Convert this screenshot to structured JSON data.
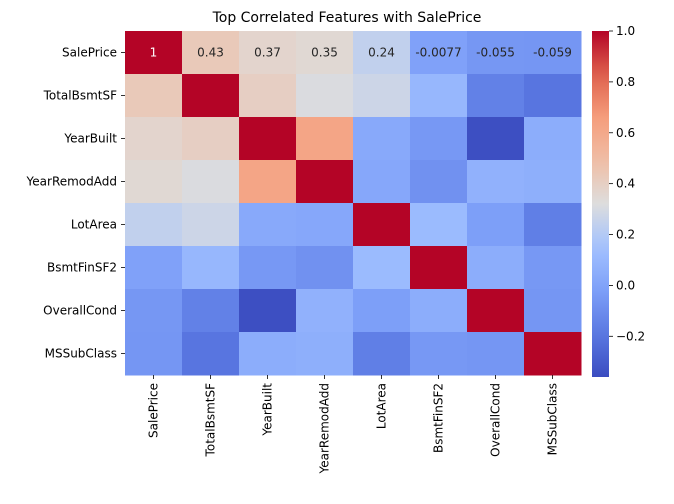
{
  "chart_data": {
    "type": "heatmap",
    "title": "Top Correlated Features with SalePrice",
    "rows": [
      "SalePrice",
      "TotalBsmtSF",
      "YearBuilt",
      "YearRemodAdd",
      "LotArea",
      "BsmtFinSF2",
      "OverallCond",
      "MSSubClass"
    ],
    "columns": [
      "SalePrice",
      "TotalBsmtSF",
      "YearBuilt",
      "YearRemodAdd",
      "LotArea",
      "BsmtFinSF2",
      "OverallCond",
      "MSSubClass"
    ],
    "values": [
      [
        1.0,
        0.43,
        0.37,
        0.35,
        0.24,
        -0.0077,
        -0.055,
        -0.059
      ],
      [
        0.43,
        1.0,
        0.4,
        0.31,
        0.27,
        0.1,
        -0.15,
        -0.2
      ],
      [
        0.37,
        0.4,
        1.0,
        0.62,
        0.03,
        -0.05,
        -0.35,
        0.05
      ],
      [
        0.35,
        0.31,
        0.62,
        1.0,
        0.02,
        -0.08,
        0.07,
        0.06
      ],
      [
        0.24,
        0.27,
        0.03,
        0.02,
        1.0,
        0.12,
        -0.02,
        -0.16
      ],
      [
        -0.0077,
        0.1,
        -0.05,
        -0.08,
        0.12,
        1.0,
        0.05,
        -0.05
      ],
      [
        -0.055,
        -0.15,
        -0.35,
        0.07,
        -0.02,
        0.05,
        1.0,
        -0.06
      ],
      [
        -0.059,
        -0.2,
        0.05,
        0.06,
        -0.16,
        -0.05,
        -0.06,
        1.0
      ]
    ],
    "annotations": {
      "row": 0,
      "labels": [
        "1",
        "0.43",
        "0.37",
        "0.35",
        "0.24",
        "-0.0077",
        "-0.055",
        "-0.059"
      ]
    },
    "colormap": "coolwarm",
    "vmin": -0.36,
    "vmax": 1.0,
    "colorbar_ticks": [
      1.0,
      0.8,
      0.6,
      0.4,
      0.2,
      0.0,
      -0.2
    ],
    "colorbar_tick_labels": [
      "1.0",
      "0.8",
      "0.6",
      "0.4",
      "0.2",
      "0.0",
      "−0.2"
    ],
    "grid": false
  }
}
